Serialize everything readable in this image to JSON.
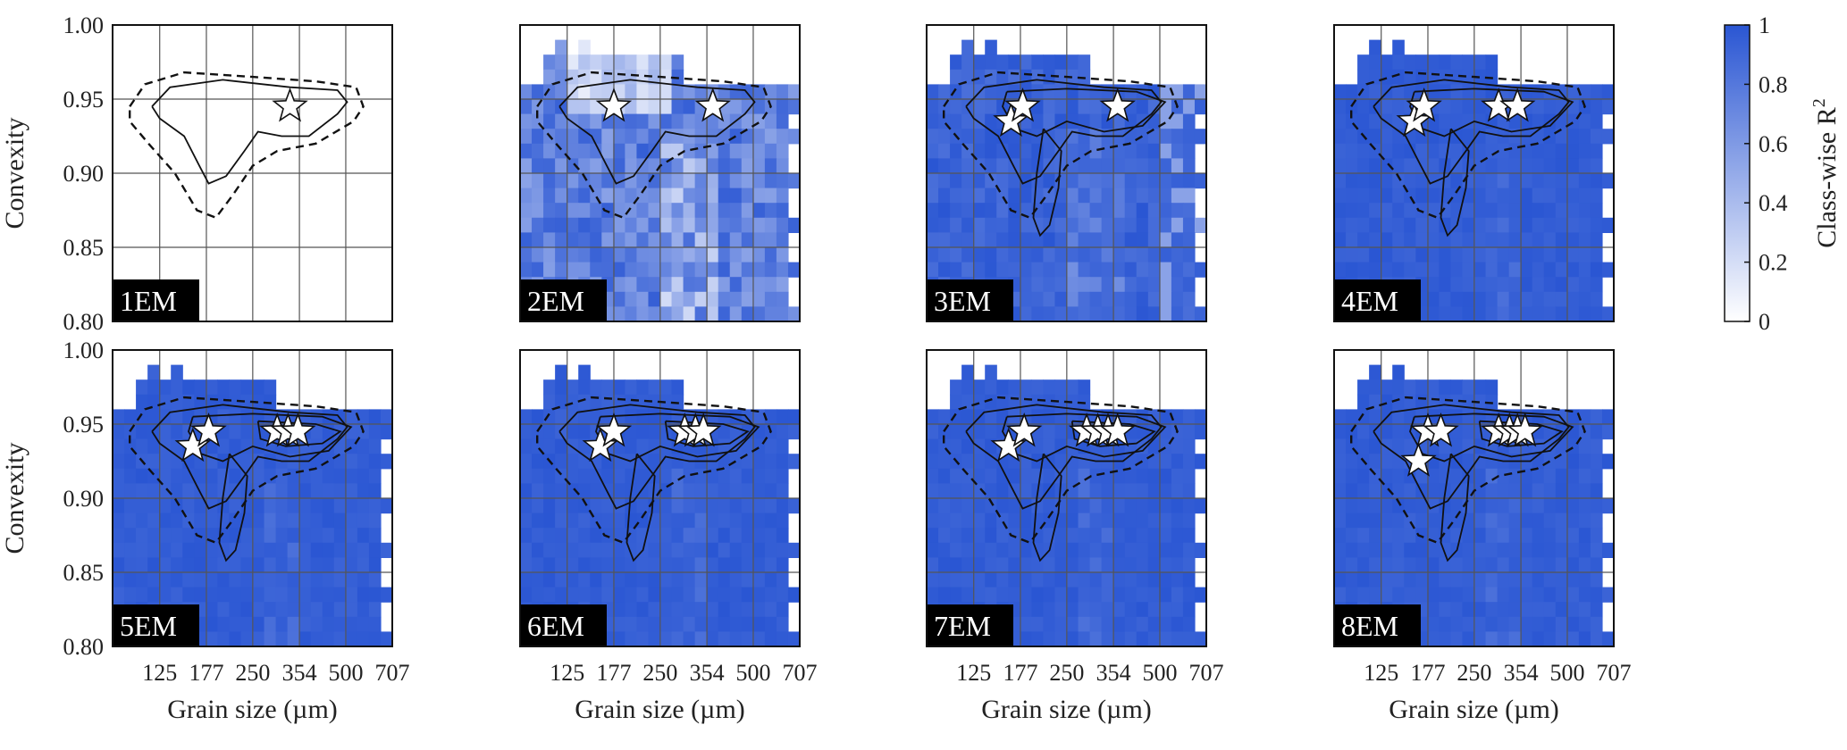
{
  "figure": {
    "colorbar": {
      "label": "Class-wise R",
      "label_sup": "2",
      "ticks": [
        "0",
        "0.2",
        "0.4",
        "0.6",
        "0.8",
        "1"
      ],
      "color_low": "#ffffff",
      "color_high": "#2a56d3"
    }
  },
  "chart_data": {
    "type": "heatmap",
    "colormap": {
      "low": "#ffffff",
      "high": "#2a56d3",
      "range": [
        0,
        1
      ]
    },
    "shared_axes": {
      "xlabel": "Grain size (µm)",
      "ylabel": "Convexity",
      "xscale": "log",
      "xlim": [
        88,
        707
      ],
      "ylim": [
        0.8,
        1.0
      ],
      "xticks": [
        125,
        177,
        250,
        354,
        500,
        707
      ],
      "xtick_labels": [
        "125",
        "177",
        "250",
        "354",
        "500",
        "707"
      ],
      "yticks": [
        0.8,
        0.85,
        0.9,
        0.95,
        1.0
      ],
      "ytick_labels": [
        "0.80",
        "0.85",
        "0.90",
        "0.95",
        "1.00"
      ],
      "grid": true
    },
    "panels": [
      {
        "label": "1EM",
        "map_style": "empty",
        "stars": [
          [
            330,
            0.945
          ]
        ]
      },
      {
        "label": "2EM",
        "map_style": "patchy",
        "stars": [
          [
            177,
            0.945
          ],
          [
            370,
            0.945
          ]
        ]
      },
      {
        "label": "3EM",
        "map_style": "mostly",
        "stars": [
          [
            165,
            0.935
          ],
          [
            180,
            0.945
          ],
          [
            365,
            0.945
          ]
        ]
      },
      {
        "label": "4EM",
        "map_style": "full",
        "stars": [
          [
            160,
            0.935
          ],
          [
            172,
            0.945
          ],
          [
            300,
            0.945
          ],
          [
            345,
            0.945
          ]
        ]
      },
      {
        "label": "5EM",
        "map_style": "full",
        "stars": [
          [
            160,
            0.935
          ],
          [
            180,
            0.945
          ],
          [
            300,
            0.945
          ],
          [
            325,
            0.945
          ],
          [
            350,
            0.945
          ]
        ]
      },
      {
        "label": "6EM",
        "map_style": "full",
        "stars": [
          [
            160,
            0.935
          ],
          [
            177,
            0.945
          ],
          [
            300,
            0.945
          ],
          [
            325,
            0.945
          ],
          [
            345,
            0.945
          ]
        ]
      },
      {
        "label": "7EM",
        "map_style": "full",
        "stars": [
          [
            162,
            0.935
          ],
          [
            182,
            0.945
          ],
          [
            290,
            0.945
          ],
          [
            315,
            0.945
          ],
          [
            340,
            0.945
          ],
          [
            365,
            0.945
          ]
        ]
      },
      {
        "label": "8EM",
        "map_style": "full",
        "stars": [
          [
            165,
            0.925
          ],
          [
            177,
            0.945
          ],
          [
            195,
            0.945
          ],
          [
            300,
            0.945
          ],
          [
            325,
            0.945
          ],
          [
            345,
            0.945
          ],
          [
            365,
            0.945
          ]
        ]
      }
    ]
  }
}
